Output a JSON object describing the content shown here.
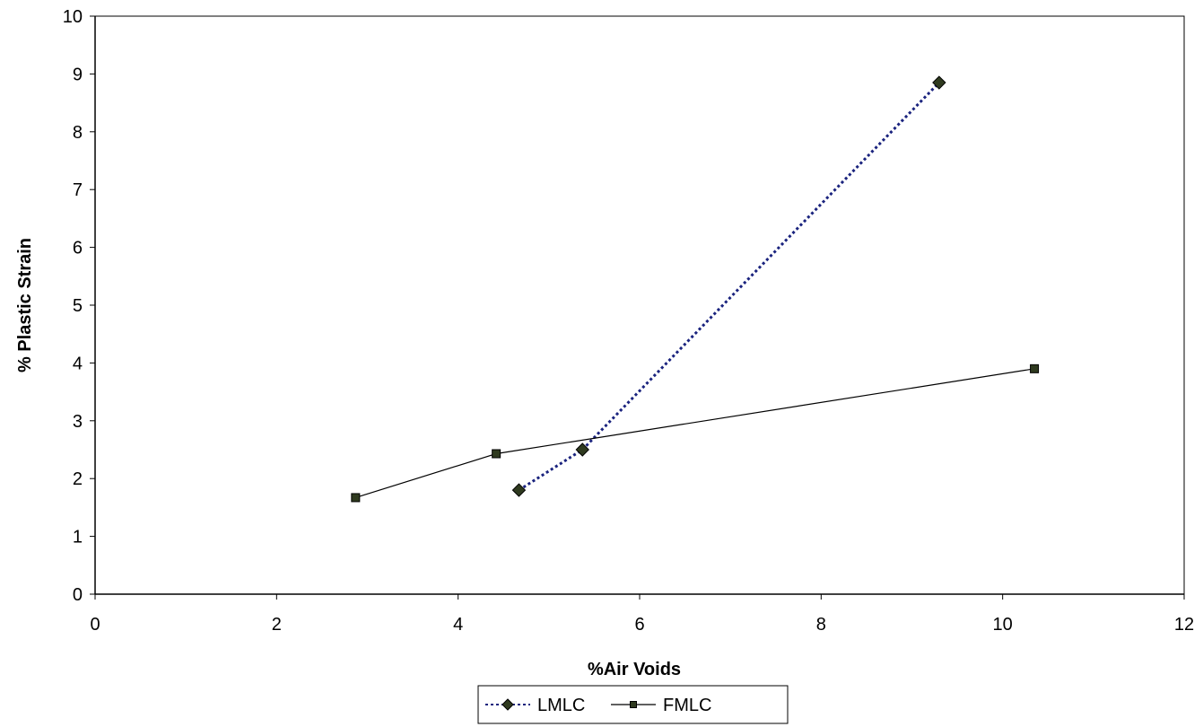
{
  "chart_data": {
    "type": "line",
    "title": "",
    "xlabel": "%Air Voids",
    "ylabel": "% Plastic Strain",
    "xlim": [
      0,
      12
    ],
    "ylim": [
      0,
      10
    ],
    "x_ticks": [
      0,
      2,
      4,
      6,
      8,
      10,
      12
    ],
    "y_ticks": [
      0,
      1,
      2,
      3,
      4,
      5,
      6,
      7,
      8,
      9,
      10
    ],
    "grid": false,
    "legend_position": "bottom-center",
    "series": [
      {
        "name": "LMLC",
        "color": "#1a237e",
        "line_style": "dotted",
        "marker": "diamond",
        "marker_color": "#2f3a1f",
        "points": [
          [
            4.67,
            1.8
          ],
          [
            5.37,
            2.5
          ],
          [
            9.3,
            8.85
          ]
        ]
      },
      {
        "name": "FMLC",
        "color": "#000000",
        "line_style": "solid",
        "marker": "square",
        "marker_color": "#2f3a1f",
        "points": [
          [
            2.87,
            1.67
          ],
          [
            4.42,
            2.43
          ],
          [
            10.35,
            3.9
          ]
        ]
      }
    ]
  }
}
